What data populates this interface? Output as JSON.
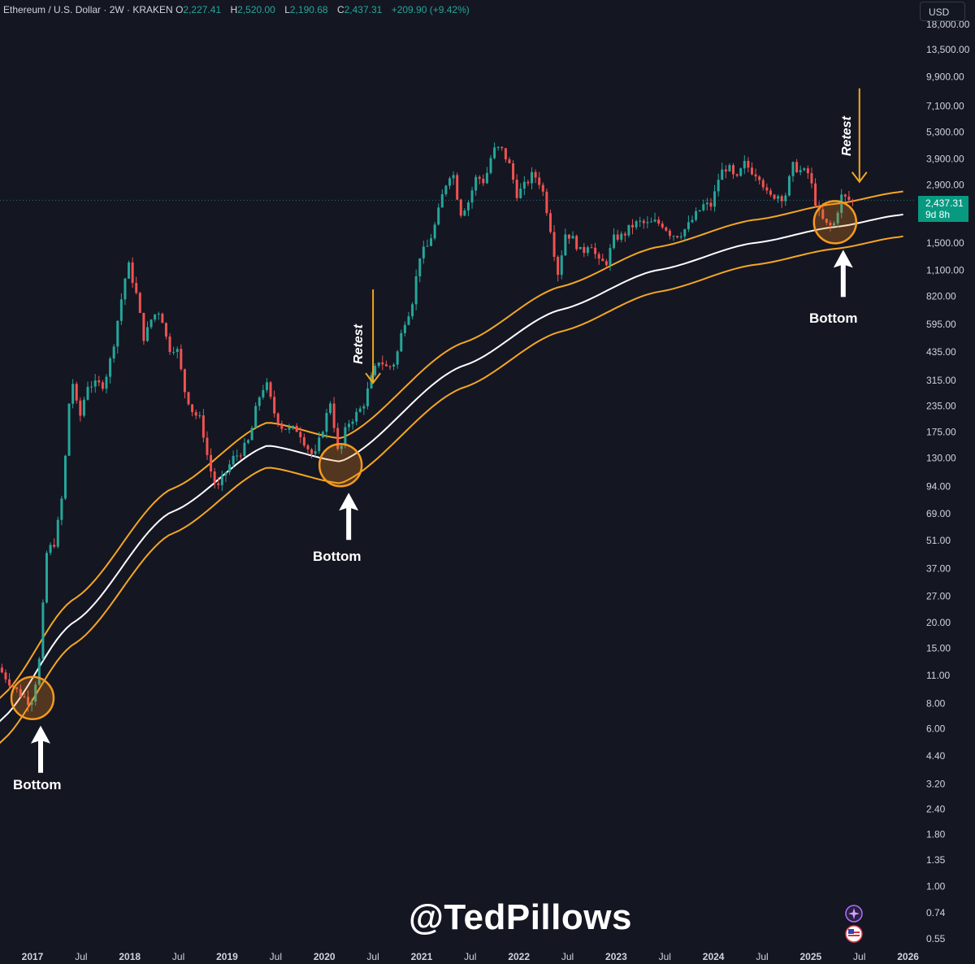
{
  "header": {
    "symbol": "Ethereum / U.S. Dollar · 2W · KRAKEN",
    "o_label": "O",
    "o_value": "2,227.41",
    "h_label": "H",
    "h_value": "2,520.00",
    "l_label": "L",
    "l_value": "2,190.68",
    "c_label": "C",
    "c_value": "2,437.31",
    "change": "+209.90 (+9.42%)"
  },
  "currency_button": "USD",
  "price_badge": {
    "price": "2,437.31",
    "countdown": "9d 8h"
  },
  "watermark": "@TedPillows",
  "annotations": {
    "bottoms": [
      "Bottom",
      "Bottom",
      "Bottom"
    ],
    "retests": [
      "Retest",
      "Retest"
    ]
  },
  "icons": [
    "sparkle-icon",
    "us-flag-icon"
  ],
  "colors": {
    "background": "#141622",
    "up": "#26a69a",
    "down": "#ef5350",
    "band": "#f5a623",
    "regression": "#ffffff",
    "badge": "#089981"
  },
  "chart_data": {
    "type": "candlestick",
    "title": "Ethereum / U.S. Dollar · 2W · KRAKEN",
    "y_scale": "log",
    "ylim": [
      0.5,
      19000
    ],
    "xlim": [
      "2016-09",
      "2026-02"
    ],
    "y_ticks": [
      "18,000.00",
      "13,500.00",
      "9,900.00",
      "7,100.00",
      "5,300.00",
      "3,900.00",
      "2,900.00",
      "1,500.00",
      "1,100.00",
      "820.00",
      "595.00",
      "435.00",
      "315.00",
      "235.00",
      "175.00",
      "130.00",
      "94.00",
      "69.00",
      "51.00",
      "37.00",
      "27.00",
      "20.00",
      "15.00",
      "11.00",
      "8.00",
      "6.00",
      "4.40",
      "3.20",
      "2.40",
      "1.80",
      "1.35",
      "1.00",
      "0.74",
      "0.55"
    ],
    "x_ticks": [
      {
        "label": "2017",
        "date": "2017-01"
      },
      {
        "label": "Jul",
        "date": "2017-07"
      },
      {
        "label": "2018",
        "date": "2018-01"
      },
      {
        "label": "Jul",
        "date": "2018-07"
      },
      {
        "label": "2019",
        "date": "2019-01"
      },
      {
        "label": "Jul",
        "date": "2019-07"
      },
      {
        "label": "2020",
        "date": "2020-01"
      },
      {
        "label": "Jul",
        "date": "2020-07"
      },
      {
        "label": "2021",
        "date": "2021-01"
      },
      {
        "label": "Jul",
        "date": "2021-07"
      },
      {
        "label": "2022",
        "date": "2022-01"
      },
      {
        "label": "Jul",
        "date": "2022-07"
      },
      {
        "label": "2023",
        "date": "2023-01"
      },
      {
        "label": "Jul",
        "date": "2023-07"
      },
      {
        "label": "2024",
        "date": "2024-01"
      },
      {
        "label": "Jul",
        "date": "2024-07"
      },
      {
        "label": "2025",
        "date": "2025-01"
      },
      {
        "label": "Jul",
        "date": "2025-07"
      },
      {
        "label": "2026",
        "date": "2026-01"
      }
    ],
    "price_anchors": [
      [
        "2016-09",
        12
      ],
      [
        "2016-11",
        9.5
      ],
      [
        "2017-01",
        8
      ],
      [
        "2017-02",
        12
      ],
      [
        "2017-03",
        45
      ],
      [
        "2017-04",
        50
      ],
      [
        "2017-05",
        90
      ],
      [
        "2017-06",
        340
      ],
      [
        "2017-07",
        200
      ],
      [
        "2017-08",
        300
      ],
      [
        "2017-09",
        300
      ],
      [
        "2017-10",
        300
      ],
      [
        "2017-11",
        420
      ],
      [
        "2017-12",
        720
      ],
      [
        "2018-01",
        1200
      ],
      [
        "2018-02",
        850
      ],
      [
        "2018-03",
        500
      ],
      [
        "2018-04",
        650
      ],
      [
        "2018-05",
        700
      ],
      [
        "2018-06",
        450
      ],
      [
        "2018-07",
        460
      ],
      [
        "2018-08",
        280
      ],
      [
        "2018-09",
        220
      ],
      [
        "2018-10",
        200
      ],
      [
        "2018-11",
        120
      ],
      [
        "2018-12",
        90
      ],
      [
        "2019-01",
        110
      ],
      [
        "2019-02",
        130
      ],
      [
        "2019-03",
        140
      ],
      [
        "2019-04",
        160
      ],
      [
        "2019-05",
        250
      ],
      [
        "2019-06",
        310
      ],
      [
        "2019-07",
        220
      ],
      [
        "2019-08",
        185
      ],
      [
        "2019-09",
        180
      ],
      [
        "2019-10",
        180
      ],
      [
        "2019-11",
        150
      ],
      [
        "2019-12",
        130
      ],
      [
        "2020-01",
        180
      ],
      [
        "2020-02",
        250
      ],
      [
        "2020-03",
        130
      ],
      [
        "2020-04",
        190
      ],
      [
        "2020-05",
        210
      ],
      [
        "2020-06",
        235
      ],
      [
        "2020-07",
        320
      ],
      [
        "2020-08",
        400
      ],
      [
        "2020-09",
        360
      ],
      [
        "2020-10",
        390
      ],
      [
        "2020-11",
        600
      ],
      [
        "2020-12",
        740
      ],
      [
        "2021-01",
        1300
      ],
      [
        "2021-02",
        1450
      ],
      [
        "2021-03",
        1900
      ],
      [
        "2021-04",
        2800
      ],
      [
        "2021-05",
        3500
      ],
      [
        "2021-06",
        2100
      ],
      [
        "2021-07",
        2400
      ],
      [
        "2021-08",
        3200
      ],
      [
        "2021-09",
        3000
      ],
      [
        "2021-10",
        4300
      ],
      [
        "2021-11",
        4400
      ],
      [
        "2021-12",
        3700
      ],
      [
        "2022-01",
        2600
      ],
      [
        "2022-02",
        2900
      ],
      [
        "2022-03",
        3300
      ],
      [
        "2022-04",
        2900
      ],
      [
        "2022-05",
        1900
      ],
      [
        "2022-06",
        1050
      ],
      [
        "2022-07",
        1700
      ],
      [
        "2022-08",
        1550
      ],
      [
        "2022-09",
        1320
      ],
      [
        "2022-10",
        1550
      ],
      [
        "2022-11",
        1200
      ],
      [
        "2022-12",
        1200
      ],
      [
        "2023-01",
        1600
      ],
      [
        "2023-02",
        1620
      ],
      [
        "2023-03",
        1800
      ],
      [
        "2023-04",
        1900
      ],
      [
        "2023-05",
        1850
      ],
      [
        "2023-06",
        1900
      ],
      [
        "2023-07",
        1850
      ],
      [
        "2023-08",
        1650
      ],
      [
        "2023-09",
        1650
      ],
      [
        "2023-10",
        1800
      ],
      [
        "2023-11",
        2050
      ],
      [
        "2023-12",
        2300
      ],
      [
        "2024-01",
        2300
      ],
      [
        "2024-02",
        3300
      ],
      [
        "2024-03",
        3600
      ],
      [
        "2024-04",
        3000
      ],
      [
        "2024-05",
        3700
      ],
      [
        "2024-06",
        3400
      ],
      [
        "2024-07",
        3200
      ],
      [
        "2024-08",
        2500
      ],
      [
        "2024-09",
        2600
      ],
      [
        "2024-10",
        2500
      ],
      [
        "2024-11",
        3600
      ],
      [
        "2024-12",
        3400
      ],
      [
        "2025-01",
        3300
      ],
      [
        "2025-02",
        2200
      ],
      [
        "2025-03",
        1850
      ],
      [
        "2025-04",
        1800
      ],
      [
        "2025-05",
        2550
      ],
      [
        "2025-06",
        2437.31
      ]
    ],
    "regression_curve": [
      [
        "2016-09",
        6.6
      ],
      [
        "2017-06",
        20
      ],
      [
        "2018-06",
        70
      ],
      [
        "2019-06",
        150
      ],
      [
        "2020-03",
        125
      ],
      [
        "2021-06",
        370
      ],
      [
        "2022-06",
        700
      ],
      [
        "2023-06",
        1100
      ],
      [
        "2024-06",
        1500
      ],
      [
        "2025-04",
        1800
      ],
      [
        "2025-12",
        2060
      ]
    ],
    "band_upper_factor": 1.3,
    "band_lower_factor": 0.78,
    "circled_bottoms": [
      {
        "date": "2017-01",
        "price": 8.5
      },
      {
        "date": "2020-03",
        "price": 120
      },
      {
        "date": "2025-04",
        "price": 1900
      }
    ],
    "retest_markers": [
      {
        "date": "2020-05",
        "price": 300
      },
      {
        "date": "2025-05",
        "price": 2950
      }
    ],
    "last_price": 2437.31
  }
}
